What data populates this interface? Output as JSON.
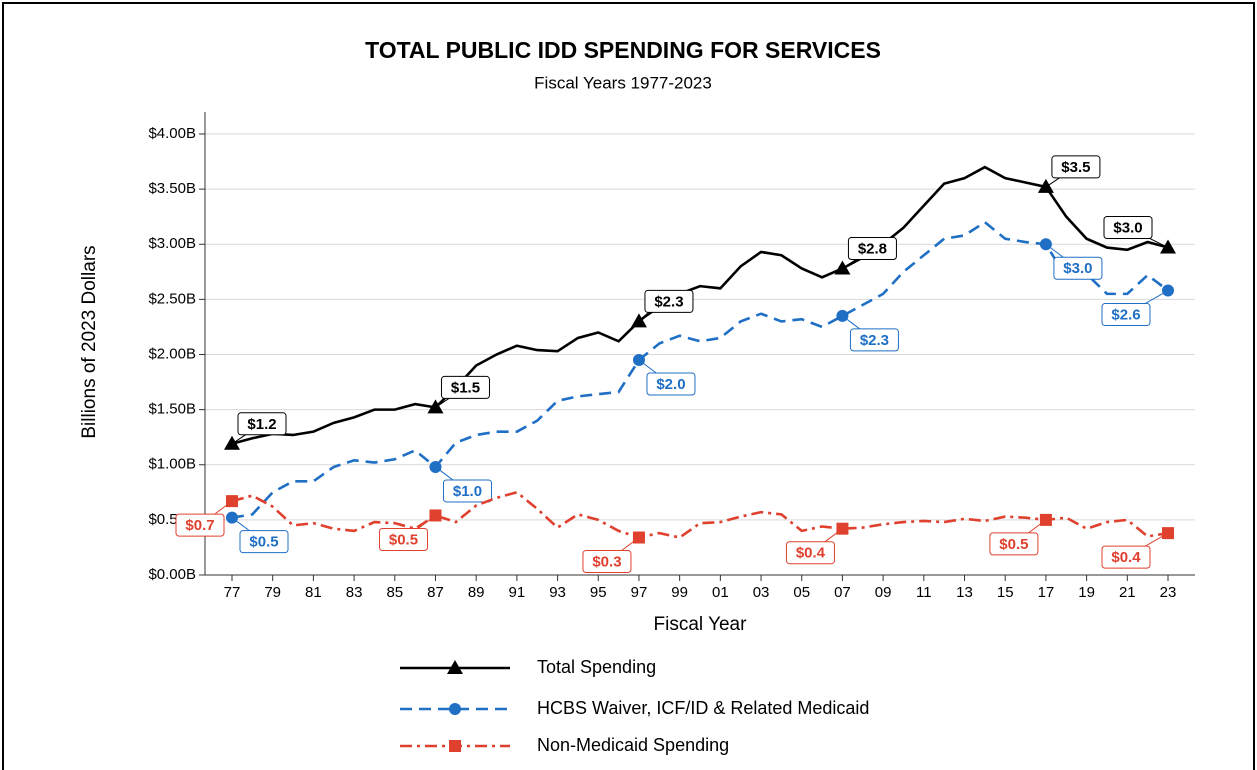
{
  "chart_data": {
    "type": "line",
    "title": "TOTAL PUBLIC IDD SPENDING FOR SERVICES",
    "subtitle": "Fiscal Years 1977-2023",
    "x_label": "Fiscal Year",
    "y_label": "Billions of 2023 Dollars",
    "categories": [
      "77",
      null,
      "79",
      null,
      "81",
      null,
      "83",
      null,
      "85",
      null,
      "87",
      null,
      "89",
      null,
      "91",
      null,
      "93",
      null,
      "95",
      null,
      "97",
      null,
      "99",
      null,
      "01",
      null,
      "03",
      null,
      "05",
      null,
      "07",
      null,
      "09",
      null,
      "11",
      null,
      "13",
      null,
      "15",
      null,
      "17",
      null,
      "19",
      null,
      "21",
      null,
      "23"
    ],
    "ylim": [
      0,
      4
    ],
    "yticks": [
      {
        "value": 0,
        "label": "$0.00B"
      },
      {
        "value": 0.5,
        "label": "$0.50B"
      },
      {
        "value": 1,
        "label": "$1.00B"
      },
      {
        "value": 1.5,
        "label": "$1.50B"
      },
      {
        "value": 2,
        "label": "$2.00B"
      },
      {
        "value": 2.5,
        "label": "$2.50B"
      },
      {
        "value": 3,
        "label": "$3.00B"
      },
      {
        "value": 3.5,
        "label": "$3.50B"
      },
      {
        "value": 4,
        "label": "$4.00B"
      }
    ],
    "grid": true,
    "legend": "bottom",
    "series": [
      {
        "name": "Total Spending",
        "color": "#000000",
        "dash": "solid",
        "marker": "triangle",
        "values": [
          1.19,
          1.24,
          1.28,
          1.27,
          1.3,
          1.38,
          1.43,
          1.5,
          1.5,
          1.55,
          1.52,
          1.7,
          1.9,
          2.0,
          2.08,
          2.04,
          2.03,
          2.15,
          2.2,
          2.12,
          2.3,
          2.45,
          2.55,
          2.62,
          2.6,
          2.8,
          2.93,
          2.9,
          2.78,
          2.7,
          2.78,
          2.88,
          3.0,
          3.15,
          3.35,
          3.55,
          3.6,
          3.7,
          3.6,
          3.56,
          3.52,
          3.25,
          3.05,
          2.97,
          2.95,
          3.02,
          2.97
        ],
        "value_labels": [
          "$1.2",
          null,
          null,
          null,
          null,
          null,
          null,
          null,
          null,
          null,
          "$1.5",
          null,
          null,
          null,
          null,
          null,
          null,
          null,
          null,
          null,
          "$2.3",
          null,
          null,
          null,
          null,
          null,
          null,
          null,
          null,
          null,
          "$2.8",
          null,
          null,
          null,
          null,
          null,
          null,
          null,
          null,
          null,
          "$3.5",
          null,
          null,
          null,
          null,
          null,
          "$3.0"
        ]
      },
      {
        "name": "HCBS Waiver, ICF/ID & Related Medicaid",
        "color": "#1f6fc5",
        "dash": "dashed",
        "marker": "circle",
        "values": [
          0.52,
          0.55,
          0.75,
          0.85,
          0.85,
          0.98,
          1.04,
          1.02,
          1.05,
          1.13,
          0.98,
          1.2,
          1.27,
          1.3,
          1.3,
          1.4,
          1.58,
          1.62,
          1.64,
          1.66,
          1.95,
          2.1,
          2.17,
          2.12,
          2.15,
          2.3,
          2.37,
          2.3,
          2.32,
          2.25,
          2.35,
          2.45,
          2.55,
          2.75,
          2.9,
          3.05,
          3.08,
          3.2,
          3.05,
          3.02,
          3.0,
          2.7,
          2.73,
          2.55,
          2.55,
          2.72,
          2.58
        ],
        "value_labels": [
          "$0.5",
          null,
          null,
          null,
          null,
          null,
          null,
          null,
          null,
          null,
          "$1.0",
          null,
          null,
          null,
          null,
          null,
          null,
          null,
          null,
          null,
          "$2.0",
          null,
          null,
          null,
          null,
          null,
          null,
          null,
          null,
          null,
          "$2.3",
          null,
          null,
          null,
          null,
          null,
          null,
          null,
          null,
          null,
          "$3.0",
          null,
          null,
          null,
          null,
          null,
          "$2.6"
        ]
      },
      {
        "name": "Non-Medicaid Spending",
        "color": "#e0402e",
        "dash": "dashdot",
        "marker": "square",
        "values": [
          0.67,
          0.72,
          0.62,
          0.45,
          0.47,
          0.42,
          0.4,
          0.48,
          0.47,
          0.42,
          0.54,
          0.48,
          0.63,
          0.7,
          0.75,
          0.6,
          0.43,
          0.55,
          0.5,
          0.4,
          0.34,
          0.38,
          0.34,
          0.47,
          0.48,
          0.53,
          0.57,
          0.55,
          0.4,
          0.44,
          0.42,
          0.43,
          0.46,
          0.48,
          0.49,
          0.48,
          0.51,
          0.49,
          0.53,
          0.52,
          0.5,
          0.52,
          0.42,
          0.48,
          0.5,
          0.35,
          0.38
        ],
        "value_labels": [
          "$0.7",
          null,
          null,
          null,
          null,
          null,
          null,
          null,
          null,
          null,
          "$0.5",
          null,
          null,
          null,
          null,
          null,
          null,
          null,
          null,
          null,
          "$0.3",
          null,
          null,
          null,
          null,
          null,
          null,
          null,
          null,
          null,
          "$0.4",
          null,
          null,
          null,
          null,
          null,
          null,
          null,
          null,
          null,
          "$0.5",
          null,
          null,
          null,
          null,
          null,
          "$0.4"
        ]
      }
    ]
  }
}
